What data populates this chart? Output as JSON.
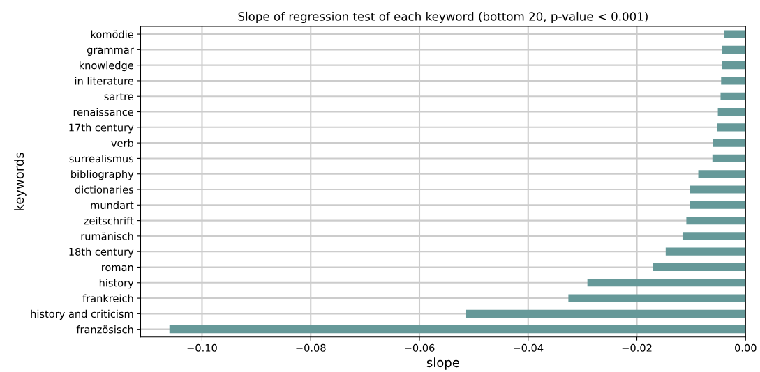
{
  "chart_data": {
    "type": "bar",
    "orientation": "horizontal",
    "title": "Slope of regression test of each keyword (bottom 20, p-value < 0.001)",
    "xlabel": "slope",
    "ylabel": "keywords",
    "categories": [
      "komödie",
      "grammar",
      "knowledge",
      "in literature",
      "sartre",
      "renaissance",
      "17th century",
      "verb",
      "surrealismus",
      "bibliography",
      "dictionaries",
      "mundart",
      "zeitschrift",
      "rumänisch",
      "18th century",
      "roman",
      "history",
      "frankreich",
      "history and criticism",
      "französisch"
    ],
    "values": [
      -0.004,
      -0.0043,
      -0.0044,
      -0.0045,
      -0.0046,
      -0.0051,
      -0.0053,
      -0.006,
      -0.0061,
      -0.0087,
      -0.0102,
      -0.0103,
      -0.0109,
      -0.0116,
      -0.0147,
      -0.0171,
      -0.0291,
      -0.0326,
      -0.0514,
      -0.106
    ],
    "color": "#669999",
    "xlim": [
      -0.1113,
      0.0
    ],
    "xticks": [
      {
        "value": -0.1,
        "label": "−0.10"
      },
      {
        "value": -0.08,
        "label": "−0.08"
      },
      {
        "value": -0.06,
        "label": "−0.06"
      },
      {
        "value": -0.04,
        "label": "−0.04"
      },
      {
        "value": -0.02,
        "label": "−0.02"
      },
      {
        "value": 0.0,
        "label": "0.00"
      }
    ],
    "grid": true
  }
}
